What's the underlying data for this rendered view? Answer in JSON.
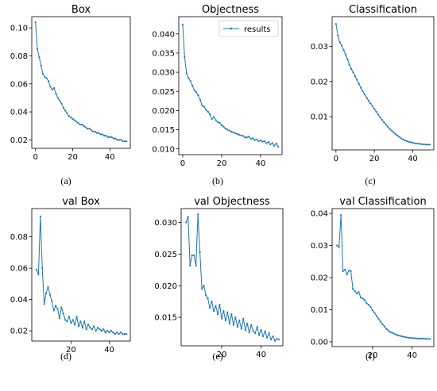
{
  "figure": {
    "line_color": "#1f77b4",
    "legend_label": "results"
  },
  "chart_data": [
    {
      "type": "line",
      "title": "Box",
      "caption": "(a)",
      "xlim": [
        -2,
        51
      ],
      "ylim": [
        0.014,
        0.108
      ],
      "xticks": [
        0,
        20,
        40
      ],
      "yticks": [
        0.02,
        0.04,
        0.06,
        0.08,
        0.1
      ],
      "xlabels": [
        "0",
        "20",
        "40"
      ],
      "ylabels": [
        "0.02",
        "0.04",
        "0.06",
        "0.08",
        "0.10"
      ],
      "x_start": 0,
      "values": [
        0.104,
        0.085,
        0.079,
        0.073,
        0.067,
        0.065,
        0.064,
        0.062,
        0.058,
        0.056,
        0.057,
        0.053,
        0.05,
        0.048,
        0.046,
        0.043,
        0.041,
        0.039,
        0.037,
        0.036,
        0.035,
        0.034,
        0.033,
        0.032,
        0.031,
        0.031,
        0.03,
        0.029,
        0.028,
        0.028,
        0.027,
        0.026,
        0.026,
        0.025,
        0.025,
        0.024,
        0.024,
        0.023,
        0.023,
        0.022,
        0.022,
        0.022,
        0.021,
        0.021,
        0.02,
        0.02,
        0.02,
        0.019,
        0.019,
        0.019
      ],
      "legend": false
    },
    {
      "type": "line",
      "title": "Objectness",
      "caption": "(b)",
      "xlim": [
        -2,
        51
      ],
      "ylim": [
        0.0085,
        0.0445
      ],
      "xticks": [
        0,
        20,
        40
      ],
      "yticks": [
        0.01,
        0.015,
        0.02,
        0.025,
        0.03,
        0.035,
        0.04
      ],
      "xlabels": [
        "0",
        "20",
        "40"
      ],
      "ylabels": [
        "0.010",
        "0.015",
        "0.020",
        "0.025",
        "0.030",
        "0.035",
        "0.040"
      ],
      "x_start": 0,
      "values": [
        0.0424,
        0.034,
        0.0297,
        0.0285,
        0.0277,
        0.0265,
        0.0253,
        0.0248,
        0.024,
        0.0228,
        0.0213,
        0.021,
        0.0202,
        0.0197,
        0.019,
        0.0178,
        0.0183,
        0.0175,
        0.017,
        0.0168,
        0.0162,
        0.0158,
        0.0153,
        0.015,
        0.0148,
        0.0145,
        0.0143,
        0.0141,
        0.0139,
        0.0137,
        0.0135,
        0.0134,
        0.013,
        0.013,
        0.0132,
        0.0126,
        0.0128,
        0.0123,
        0.0125,
        0.012,
        0.0122,
        0.0119,
        0.012,
        0.0115,
        0.0118,
        0.0112,
        0.0115,
        0.0108,
        0.0114,
        0.0106
      ],
      "legend": true
    },
    {
      "type": "line",
      "title": "Classification",
      "caption": "(c)",
      "xlim": [
        -2,
        51
      ],
      "ylim": [
        0.0005,
        0.0385
      ],
      "xticks": [
        0,
        20,
        40
      ],
      "yticks": [
        0.01,
        0.02,
        0.03
      ],
      "xlabels": [
        "0",
        "20",
        "40"
      ],
      "ylabels": [
        "0.01",
        "0.02",
        "0.03"
      ],
      "x_start": 0,
      "values": [
        0.0364,
        0.0332,
        0.0312,
        0.0302,
        0.029,
        0.0277,
        0.0264,
        0.0248,
        0.0236,
        0.0226,
        0.0215,
        0.0205,
        0.0193,
        0.0182,
        0.0172,
        0.0163,
        0.0154,
        0.0145,
        0.0138,
        0.013,
        0.0122,
        0.0114,
        0.0106,
        0.0098,
        0.0091,
        0.0084,
        0.0078,
        0.0071,
        0.0065,
        0.006,
        0.0055,
        0.005,
        0.0046,
        0.0042,
        0.0038,
        0.0035,
        0.0032,
        0.003,
        0.0028,
        0.0027,
        0.0025,
        0.0024,
        0.0023,
        0.0023,
        0.0022,
        0.0021,
        0.0021,
        0.002,
        0.002,
        0.002
      ],
      "legend": false
    },
    {
      "type": "line",
      "title": "val Box",
      "caption": "(d)",
      "xlim": [
        -0.5,
        51
      ],
      "ylim": [
        0.0135,
        0.098
      ],
      "xticks": [
        20,
        40
      ],
      "yticks": [
        0.02,
        0.04,
        0.06,
        0.08
      ],
      "xlabels": [
        "20",
        "40"
      ],
      "ylabels": [
        "0.02",
        "0.04",
        "0.06",
        "0.08"
      ],
      "x_start": 2,
      "values": [
        0.059,
        0.056,
        0.093,
        0.06,
        0.037,
        0.044,
        0.048,
        0.043,
        0.039,
        0.033,
        0.036,
        0.034,
        0.028,
        0.035,
        0.031,
        0.027,
        0.026,
        0.029,
        0.025,
        0.027,
        0.024,
        0.029,
        0.023,
        0.026,
        0.022,
        0.026,
        0.021,
        0.024,
        0.022,
        0.021,
        0.023,
        0.02,
        0.022,
        0.021,
        0.02,
        0.021,
        0.019,
        0.02,
        0.019,
        0.02,
        0.019,
        0.018,
        0.019,
        0.018,
        0.019,
        0.018,
        0.018,
        0.018
      ],
      "legend": false
    },
    {
      "type": "line",
      "title": "val Objectness",
      "caption": "(e)",
      "xlim": [
        -0.5,
        51
      ],
      "ylim": [
        0.0105,
        0.0322
      ],
      "xticks": [
        20,
        40
      ],
      "yticks": [
        0.015,
        0.02,
        0.025,
        0.03
      ],
      "xlabels": [
        "20",
        "40"
      ],
      "ylabels": [
        "0.015",
        "0.020",
        "0.025",
        "0.030"
      ],
      "x_start": 2,
      "values": [
        0.03,
        0.0309,
        0.0232,
        0.0248,
        0.0248,
        0.0232,
        0.0313,
        0.0253,
        0.0195,
        0.02,
        0.0185,
        0.018,
        0.0165,
        0.0175,
        0.016,
        0.0168,
        0.0155,
        0.017,
        0.0148,
        0.016,
        0.0145,
        0.0158,
        0.014,
        0.0155,
        0.0138,
        0.015,
        0.0135,
        0.0145,
        0.0132,
        0.0148,
        0.013,
        0.014,
        0.0126,
        0.0138,
        0.0128,
        0.0125,
        0.0135,
        0.0122,
        0.013,
        0.012,
        0.0128,
        0.0118,
        0.0125,
        0.0115,
        0.012,
        0.0113,
        0.0116,
        0.0115
      ],
      "legend": false
    },
    {
      "type": "line",
      "title": "val Classification",
      "caption": "(f)",
      "xlim": [
        -0.5,
        51
      ],
      "ylim": [
        -0.0015,
        0.0415
      ],
      "xticks": [
        20,
        40
      ],
      "yticks": [
        0.0,
        0.01,
        0.02,
        0.03,
        0.04
      ],
      "xlabels": [
        "20",
        "40"
      ],
      "ylabels": [
        "0.00",
        "0.01",
        "0.02",
        "0.03",
        "0.04"
      ],
      "x_start": 2,
      "values": [
        0.03,
        0.0295,
        0.0395,
        0.022,
        0.0225,
        0.021,
        0.0222,
        0.022,
        0.0165,
        0.0158,
        0.015,
        0.0155,
        0.0138,
        0.0135,
        0.013,
        0.012,
        0.0115,
        0.0108,
        0.0098,
        0.009,
        0.008,
        0.0072,
        0.0063,
        0.0055,
        0.0048,
        0.004,
        0.0035,
        0.003,
        0.0028,
        0.0025,
        0.0022,
        0.002,
        0.0018,
        0.0017,
        0.0015,
        0.0014,
        0.0013,
        0.0012,
        0.0012,
        0.0011,
        0.0011,
        0.001,
        0.001,
        0.001,
        0.001,
        0.0009,
        0.0009,
        0.0009
      ],
      "legend": false
    }
  ]
}
